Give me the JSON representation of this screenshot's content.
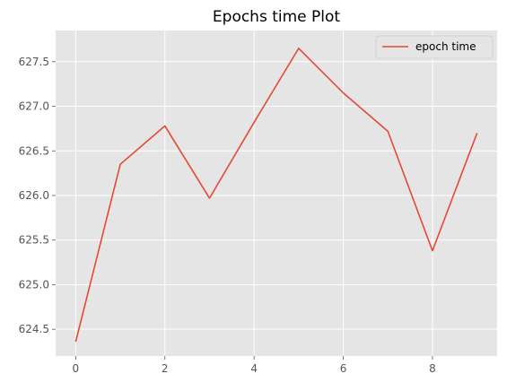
{
  "chart_data": {
    "type": "line",
    "title": "Epochs time Plot",
    "xlabel": "",
    "ylabel": "",
    "x": [
      0,
      1,
      2,
      3,
      4,
      5,
      6,
      7,
      8,
      9
    ],
    "series": [
      {
        "name": "epoch time",
        "values": [
          624.36,
          626.35,
          626.78,
          625.97,
          626.82,
          627.65,
          627.15,
          626.72,
          625.38,
          626.7
        ]
      }
    ],
    "xlim": [
      -0.45,
      9.45
    ],
    "ylim": [
      624.2,
      627.85
    ],
    "x_ticks": [
      0,
      2,
      4,
      6,
      8
    ],
    "y_ticks": [
      624.5,
      625.0,
      625.5,
      626.0,
      626.5,
      627.0,
      627.5
    ],
    "x_tick_labels": [
      "0",
      "2",
      "4",
      "6",
      "8"
    ],
    "y_tick_labels": [
      "624.5",
      "625.0",
      "625.5",
      "626.0",
      "626.5",
      "627.0",
      "627.5"
    ],
    "grid": true,
    "legend_position": "top-right",
    "colors": {
      "line": "#E24A33",
      "plot_background": "#E5E5E5",
      "grid": "#FFFFFF",
      "tick_text": "#555555"
    }
  }
}
